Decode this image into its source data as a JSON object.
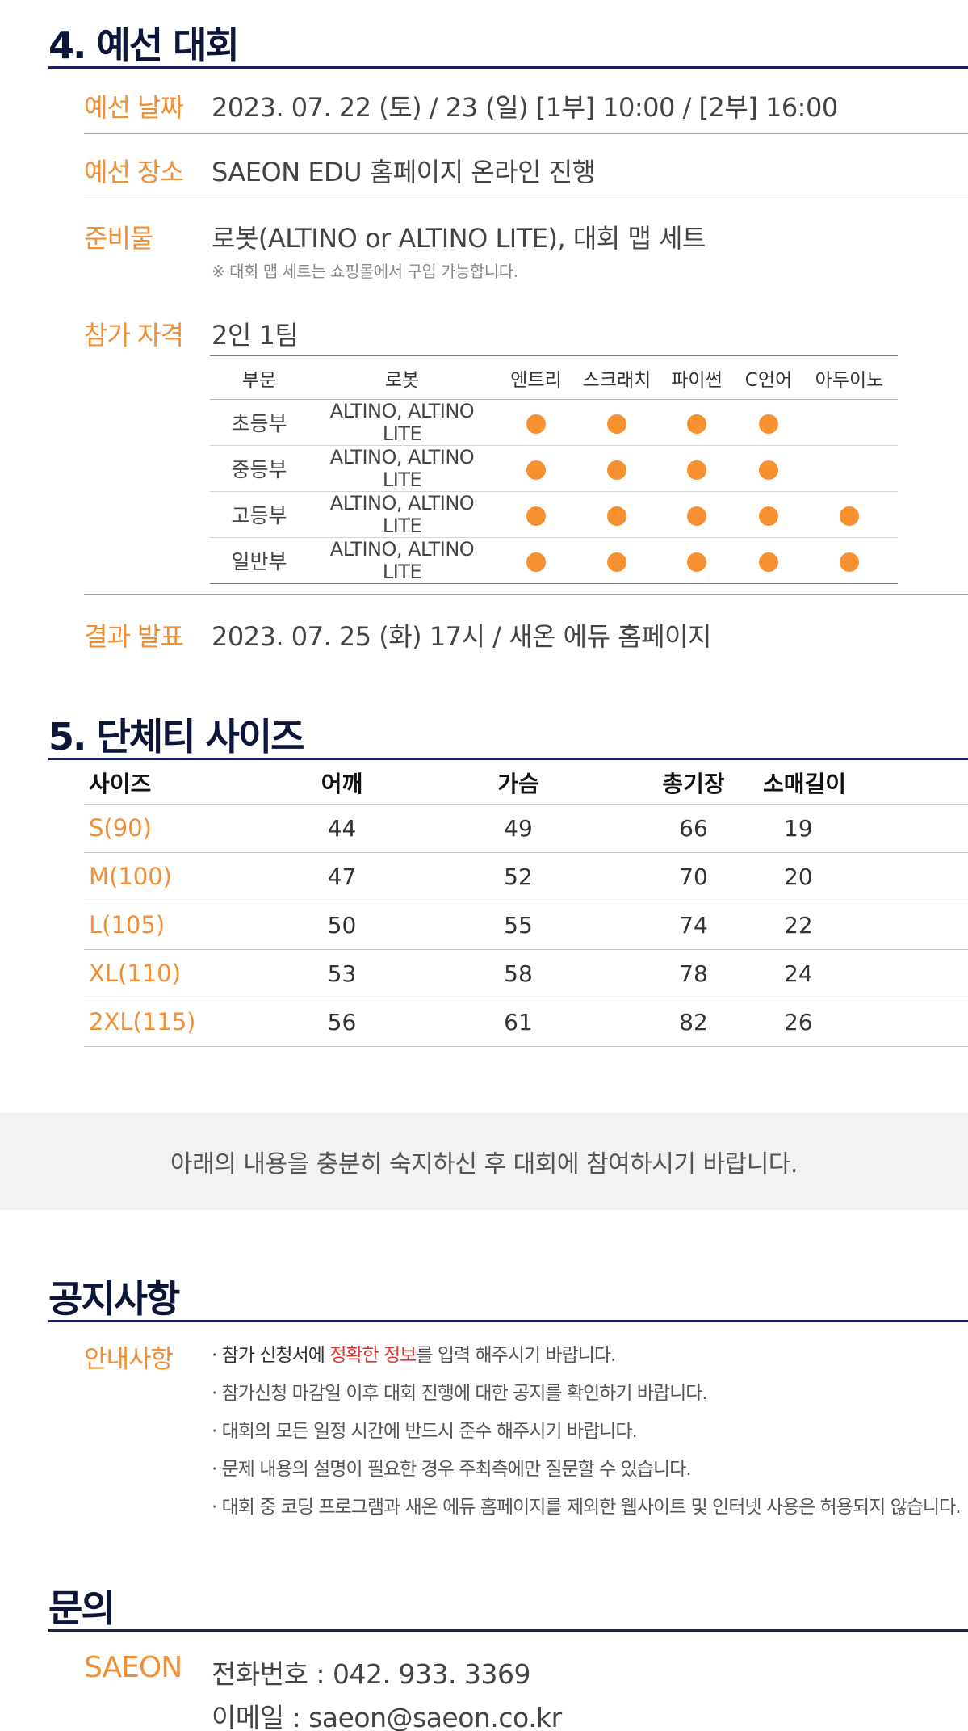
{
  "section4": {
    "title": "4. 예선 대회",
    "date_label": "예선 날짜",
    "date_value": "2023. 07. 22 (토) / 23 (일)   [1부] 10:00 / [2부] 16:00",
    "place_label": "예선 장소",
    "place_value": "SAEON EDU 홈페이지 온라인 진행",
    "prep_label": "준비물",
    "prep_value": "로봇(ALTINO or ALTINO LITE), 대회 맵 세트",
    "prep_note": "※ 대회 맵 세트는 쇼핑몰에서 구입 가능합니다.",
    "qual_label": "참가 자격",
    "qual_value": "2인 1팀",
    "qual_table": {
      "headers": [
        "부문",
        "로봇",
        "엔트리",
        "스크래치",
        "파이썬",
        "C언어",
        "아두이노"
      ],
      "rows": [
        {
          "division": "초등부",
          "robot": "ALTINO, ALTINO LITE",
          "marks": [
            true,
            true,
            true,
            true,
            false
          ]
        },
        {
          "division": "중등부",
          "robot": "ALTINO, ALTINO LITE",
          "marks": [
            true,
            true,
            true,
            true,
            false
          ]
        },
        {
          "division": "고등부",
          "robot": "ALTINO, ALTINO LITE",
          "marks": [
            true,
            true,
            true,
            true,
            true
          ]
        },
        {
          "division": "일반부",
          "robot": "ALTINO, ALTINO LITE",
          "marks": [
            true,
            true,
            true,
            true,
            true
          ]
        }
      ]
    },
    "result_label": "결과 발표",
    "result_value": "2023. 07. 25 (화) 17시 / 새온 에듀 홈페이지"
  },
  "section5": {
    "title": "5. 단체티 사이즈",
    "headers": [
      "사이즈",
      "어깨",
      "가슴",
      "총기장",
      "소매길이"
    ],
    "rows": [
      [
        "S(90)",
        "44",
        "49",
        "66",
        "19"
      ],
      [
        "M(100)",
        "47",
        "52",
        "70",
        "20"
      ],
      [
        "L(105)",
        "50",
        "55",
        "74",
        "22"
      ],
      [
        "XL(110)",
        "53",
        "58",
        "78",
        "24"
      ],
      [
        "2XL(115)",
        "56",
        "61",
        "82",
        "26"
      ]
    ]
  },
  "banner": {
    "text": "아래의 내용을 충분히 숙지하신 후 대회에 참여하시기 바랍니다."
  },
  "notice": {
    "title": "공지사항",
    "label": "안내사항",
    "line1_a": "· 참가 신청서에 ",
    "line1_b": "정확한 정보",
    "line1_c": "를 입력 해주시기 바랍니다.",
    "line2": "· 참가신청 마감일 이후 대회 진행에 대한 공지를 확인하기 바랍니다.",
    "line3": "· 대회의 모든 일정 시간에 반드시 준수 해주시기 바랍니다.",
    "line4": "· 문제 내용의 설명이 필요한 경우 주최측에만 질문할 수 있습니다.",
    "line5": "· 대회 중 코딩 프로그램과 새온 에듀 홈페이지를 제외한 웹사이트 및 인터넷 사용은 허용되지 않습니다."
  },
  "inquiry": {
    "title": "문의",
    "label": "SAEON",
    "phone": "전화번호 : 042. 933. 3369",
    "email": "이메일 : saeon@saeon.co.kr"
  },
  "colors": {
    "accent": "#f28f35",
    "navy": "#0d1538",
    "dot": "#f7902f",
    "highlight": "#d8352e"
  }
}
